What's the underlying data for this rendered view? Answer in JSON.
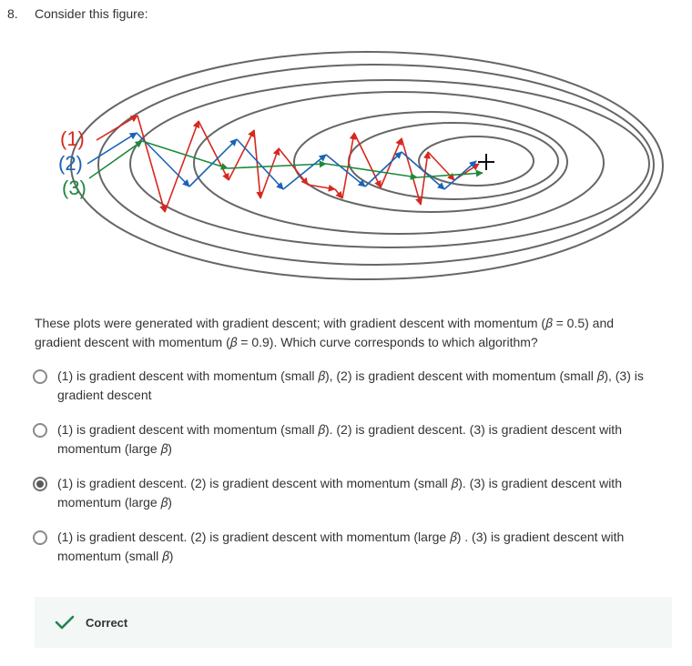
{
  "question": {
    "number": "8.",
    "title": "Consider this figure:",
    "figure_labels": [
      "(1)",
      "(2)",
      "(3)"
    ],
    "prompt": "These plots were generated with gradient descent; with gradient descent with momentum (𝛽 = 0.5) and gradient descent with momentum (𝛽 = 0.9). Which curve corresponds to which algorithm?",
    "options": [
      {
        "label": "(1) is gradient descent with momentum (small 𝛽), (2) is gradient descent with momentum (small 𝛽), (3) is gradient descent",
        "selected": false
      },
      {
        "label": "(1) is gradient descent with momentum (small 𝛽). (2) is gradient descent. (3) is gradient descent with momentum (large 𝛽)",
        "selected": false
      },
      {
        "label": "(1) is gradient descent. (2) is gradient descent with momentum (small 𝛽). (3) is gradient descent with momentum (large 𝛽)",
        "selected": true
      },
      {
        "label": "(1) is gradient descent. (2) is gradient descent with momentum (large 𝛽) . (3) is gradient descent with momentum (small 𝛽)",
        "selected": false
      }
    ]
  },
  "feedback": {
    "text": "Correct",
    "icon": "check-icon",
    "color": "#1f8354"
  },
  "colors": {
    "red": "#d6281f",
    "blue": "#1a63b5",
    "green": "#1e8a3c",
    "contour": "#666666"
  }
}
